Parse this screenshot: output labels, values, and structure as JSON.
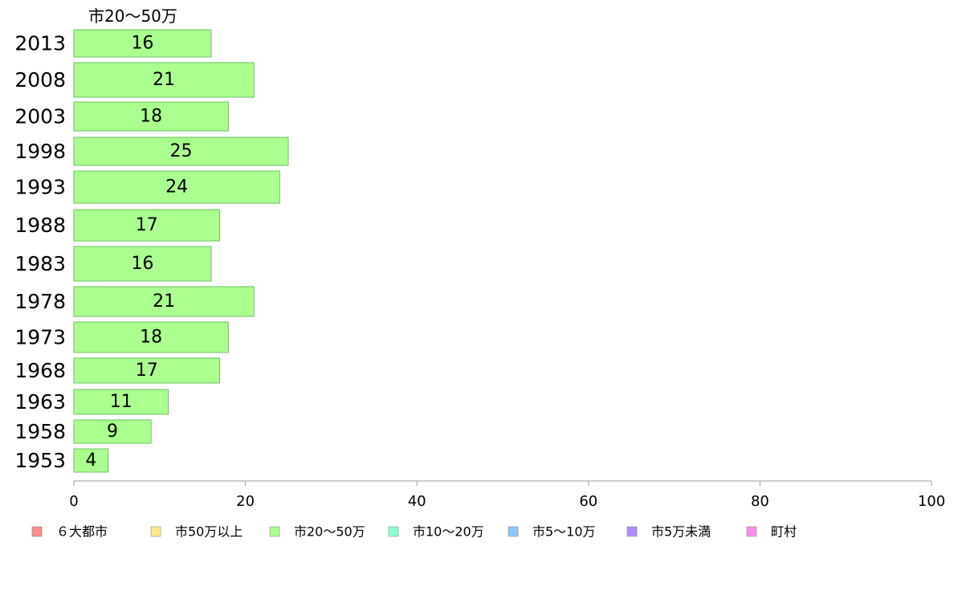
{
  "chart_data": {
    "type": "bar",
    "orientation": "horizontal",
    "series_title": "市20〜50万",
    "categories": [
      "2013",
      "2008",
      "2003",
      "1998",
      "1993",
      "1988",
      "1983",
      "1978",
      "1973",
      "1968",
      "1963",
      "1958",
      "1953"
    ],
    "series": [
      {
        "name": "市20〜50万",
        "color": "#aaff8f",
        "values": [
          16,
          21,
          18,
          25,
          24,
          17,
          16,
          21,
          18,
          17,
          11,
          9,
          4
        ],
        "labels": [
          "16",
          "21",
          "18",
          "25",
          "24",
          "17",
          "16",
          "21",
          "18",
          "17",
          "11",
          "9",
          "4"
        ]
      }
    ],
    "xlim": [
      0,
      100
    ],
    "xticks": [
      "0",
      "20",
      "40",
      "60",
      "80",
      "100"
    ],
    "grid": false,
    "legend_position": "bottom",
    "legend": [
      {
        "label": "６大都市",
        "color": "#ff8c8c"
      },
      {
        "label": "市50万以上",
        "color": "#ffe88c"
      },
      {
        "label": "市20〜50万",
        "color": "#aaff8f"
      },
      {
        "label": "市10〜20万",
        "color": "#8cffd0"
      },
      {
        "label": "市5〜10万",
        "color": "#8cc8ff"
      },
      {
        "label": "市5万未満",
        "color": "#b08cff"
      },
      {
        "label": "町村",
        "color": "#ff8cf0"
      }
    ]
  }
}
